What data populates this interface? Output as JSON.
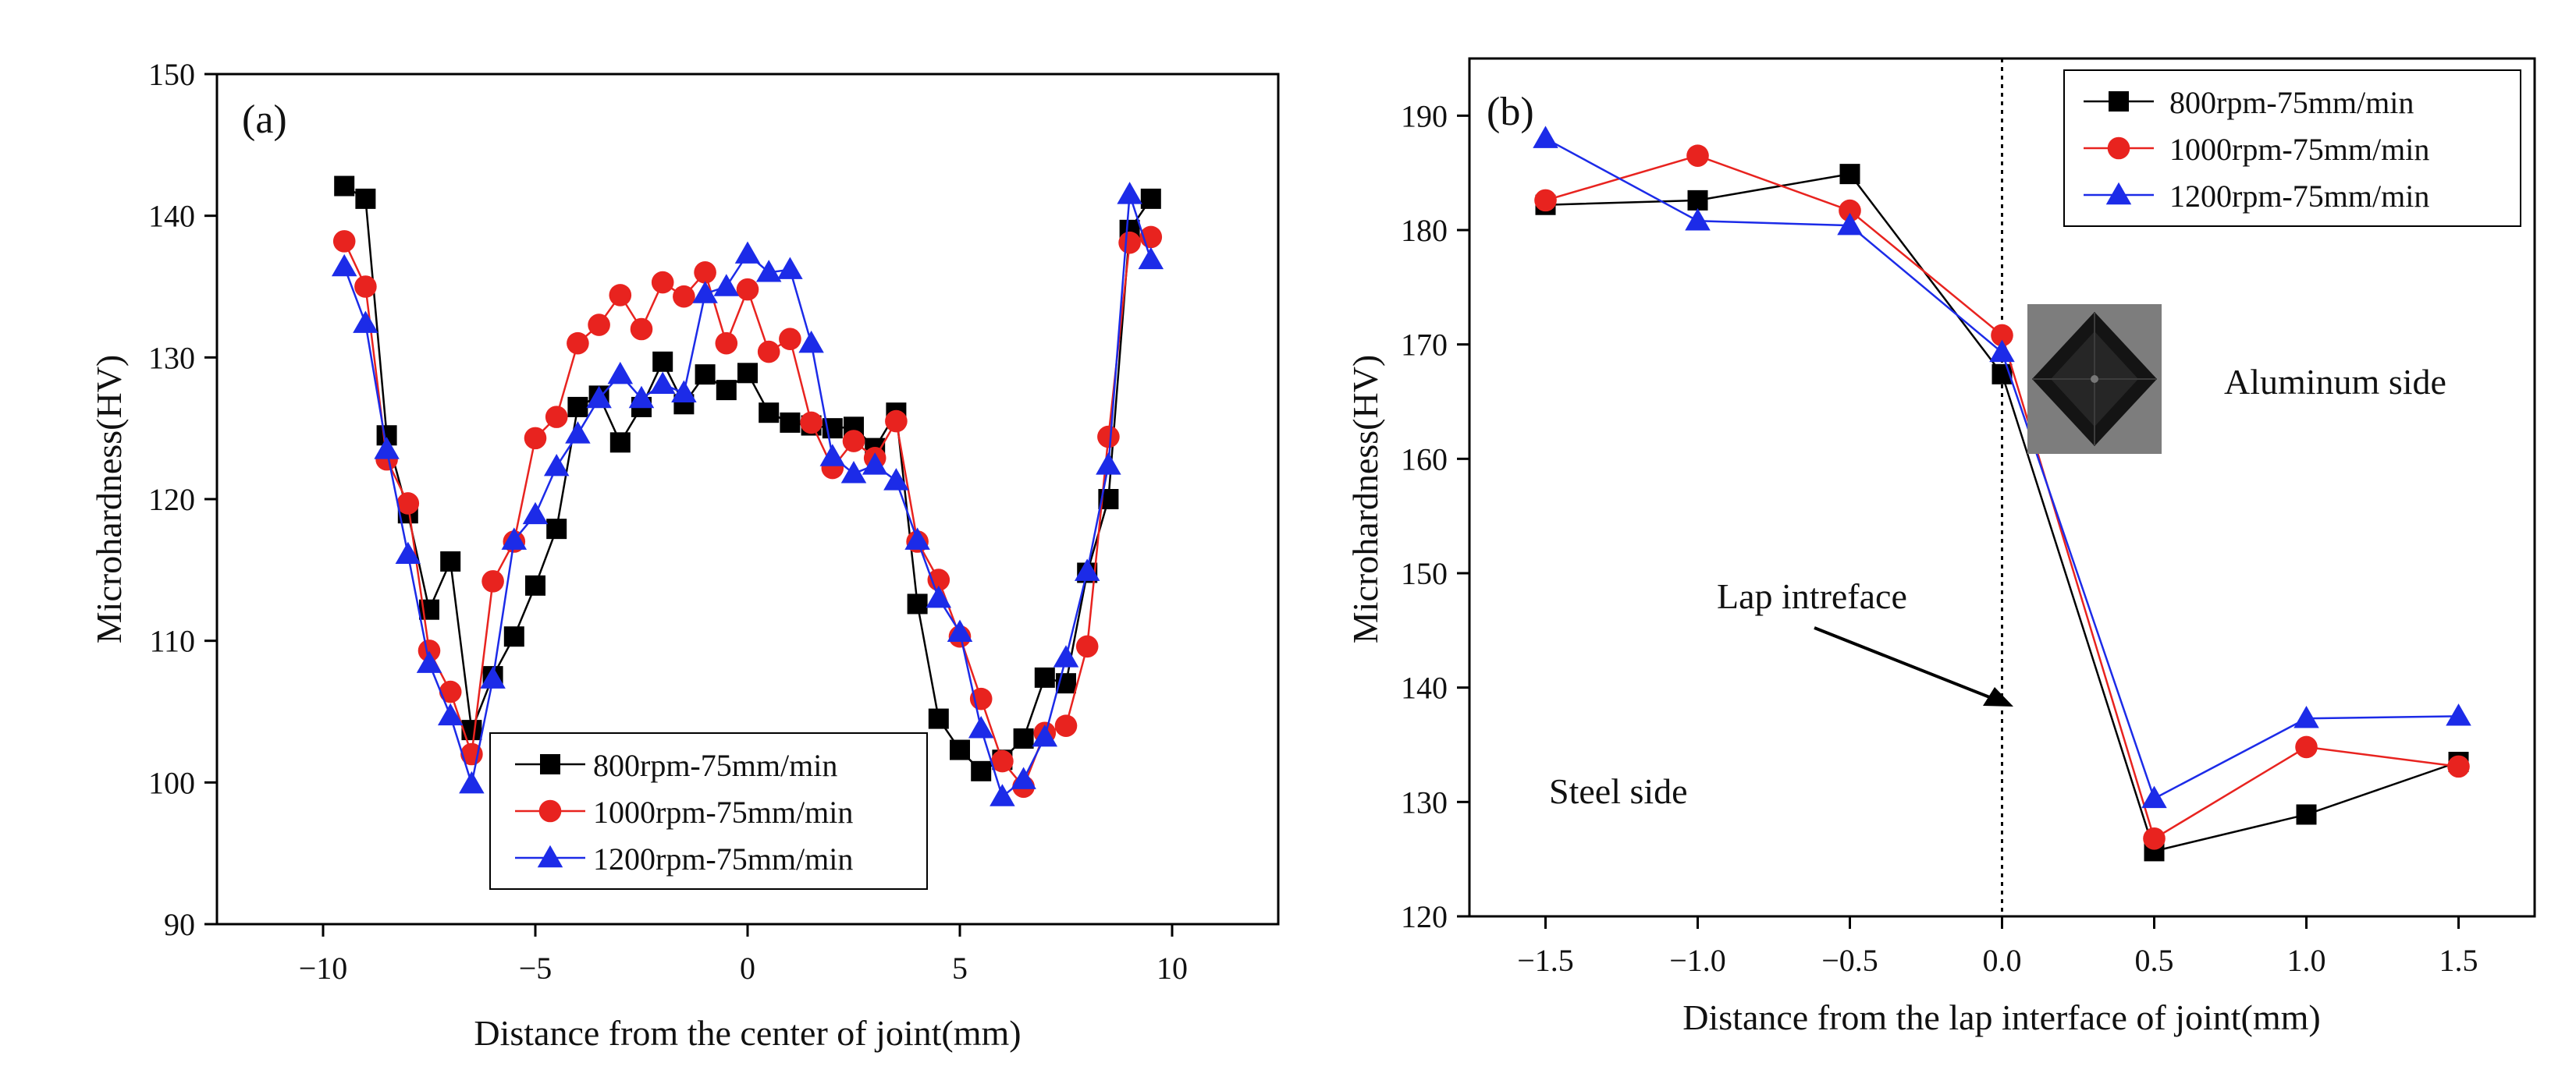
{
  "chart_data": [
    {
      "type": "line",
      "panel_label": "(a)",
      "xlabel": "Distance from the center of joint(mm)",
      "ylabel": "Microhardness(HV)",
      "xlim": [
        -12.5,
        12.5
      ],
      "ylim": [
        90,
        150
      ],
      "xticks": [
        -10,
        -5,
        0,
        5,
        10
      ],
      "yticks": [
        90,
        100,
        110,
        120,
        130,
        140,
        150
      ],
      "xtick_labels": [
        "−10",
        "−5",
        "0",
        "5",
        "10"
      ],
      "ytick_labels": [
        "90",
        "100",
        "110",
        "120",
        "130",
        "140",
        "150"
      ],
      "grid": false,
      "legend_position": "bottom-center",
      "series": [
        {
          "name": "800rpm-75mm/min",
          "color": "#000000",
          "marker": "square",
          "x": [
            -9.5,
            -9,
            -8.5,
            -8,
            -7.5,
            -7,
            -6.5,
            -6,
            -5.5,
            -5,
            -4.5,
            -4,
            -3.5,
            -3,
            -2.5,
            -2,
            -1.5,
            -1,
            -0.5,
            0,
            0.5,
            1,
            1.5,
            2,
            2.5,
            3,
            3.5,
            4,
            4.5,
            5,
            5.5,
            6,
            6.5,
            7,
            7.5,
            8,
            8.5,
            9,
            9.5
          ],
          "y": [
            142.1,
            141.2,
            124.5,
            119,
            112.2,
            115.6,
            103.7,
            107.5,
            110.3,
            113.9,
            117.9,
            126.5,
            127.3,
            124,
            126.5,
            129.7,
            126.7,
            128.8,
            127.7,
            128.9,
            126.1,
            125.4,
            125.2,
            125,
            125.1,
            123.6,
            126.1,
            112.6,
            104.5,
            102.3,
            100.8,
            101.6,
            103.1,
            107.4,
            107,
            114.8,
            120,
            139,
            141.2
          ]
        },
        {
          "name": "1000rpm-75mm/min",
          "color": "#e8231f",
          "marker": "circle",
          "x": [
            -9.5,
            -9,
            -8.5,
            -8,
            -7.5,
            -7,
            -6.5,
            -6,
            -5.5,
            -5,
            -4.5,
            -4,
            -3.5,
            -3,
            -2.5,
            -2,
            -1.5,
            -1,
            -0.5,
            0,
            0.5,
            1,
            1.5,
            2,
            2.5,
            3,
            3.5,
            4,
            4.5,
            5,
            5.5,
            6,
            6.5,
            7,
            7.5,
            8,
            8.5,
            9,
            9.5
          ],
          "y": [
            138.2,
            135,
            122.8,
            119.7,
            109.3,
            106.4,
            102,
            114.2,
            117,
            124.3,
            125.8,
            131,
            132.3,
            134.4,
            132,
            135.3,
            134.3,
            136,
            131,
            134.8,
            130.4,
            131.3,
            125.4,
            122.2,
            124.1,
            122.9,
            125.5,
            117,
            114.3,
            110.3,
            105.9,
            101.5,
            99.7,
            103.5,
            104,
            109.6,
            124.4,
            138.1,
            138.5
          ]
        },
        {
          "name": "1200rpm-75mm/min",
          "color": "#1c2be8",
          "marker": "triangle",
          "x": [
            -9.5,
            -9,
            -8.5,
            -8,
            -7.5,
            -7,
            -6.5,
            -6,
            -5.5,
            -5,
            -4.5,
            -4,
            -3.5,
            -3,
            -2.5,
            -2,
            -1.5,
            -1,
            -0.5,
            0,
            0.5,
            1,
            1.5,
            2,
            2.5,
            3,
            3.5,
            4,
            4.5,
            5,
            5.5,
            6,
            6.5,
            7,
            7.5,
            8,
            8.5,
            9,
            9.5
          ],
          "y": [
            136.4,
            132.4,
            123.5,
            116.1,
            108.4,
            104.7,
            99.9,
            107.3,
            117.1,
            118.9,
            122.3,
            124.6,
            127.1,
            128.8,
            127.1,
            128.1,
            127.5,
            134.5,
            135,
            137.3,
            136,
            136.2,
            131,
            123,
            121.8,
            122.4,
            121.3,
            117.1,
            113,
            110.6,
            103.8,
            99,
            100.2,
            103.2,
            108.8,
            114.9,
            122.4,
            141.5,
            136.9
          ]
        }
      ]
    },
    {
      "type": "line",
      "panel_label": "(b)",
      "xlabel": "Distance from the lap interface of joint(mm)",
      "ylabel": "Microhardness(HV)",
      "xlim": [
        -1.75,
        1.75
      ],
      "ylim": [
        120,
        195
      ],
      "xticks": [
        -1.5,
        -1.0,
        -0.5,
        0.0,
        0.5,
        1.0,
        1.5
      ],
      "yticks": [
        120,
        130,
        140,
        150,
        160,
        170,
        180,
        190
      ],
      "xtick_labels": [
        "−1.5",
        "−1.0",
        "−0.5",
        "0.0",
        "0.5",
        "1.0",
        "1.5"
      ],
      "ytick_labels": [
        "120",
        "130",
        "140",
        "150",
        "160",
        "170",
        "180",
        "190"
      ],
      "grid": false,
      "legend_position": "top-right",
      "series": [
        {
          "name": "800rpm-75mm/min",
          "color": "#000000",
          "marker": "square",
          "x": [
            -1.5,
            -1.0,
            -0.5,
            0.0,
            0.5,
            1.0,
            1.5
          ],
          "y": [
            182.2,
            182.6,
            184.9,
            167.4,
            125.7,
            128.9,
            133.5
          ]
        },
        {
          "name": "1000rpm-75mm/min",
          "color": "#e8231f",
          "marker": "circle",
          "x": [
            -1.5,
            -1.0,
            -0.5,
            0.0,
            0.5,
            1.0,
            1.5
          ],
          "y": [
            182.6,
            186.5,
            181.7,
            170.8,
            126.8,
            134.8,
            133.1
          ]
        },
        {
          "name": "1200rpm-75mm/min",
          "color": "#1c2be8",
          "marker": "triangle",
          "x": [
            -1.5,
            -1.0,
            -0.5,
            0.0,
            0.5,
            1.0,
            1.5
          ],
          "y": [
            188,
            180.8,
            180.4,
            169.3,
            130.3,
            137.3,
            137.5
          ]
        }
      ],
      "interface_line_x": 0.0,
      "annotations": {
        "lap_interface": "Lap intreface",
        "aluminum_side": "Aluminum side",
        "steel_side": "Steel side"
      }
    }
  ]
}
